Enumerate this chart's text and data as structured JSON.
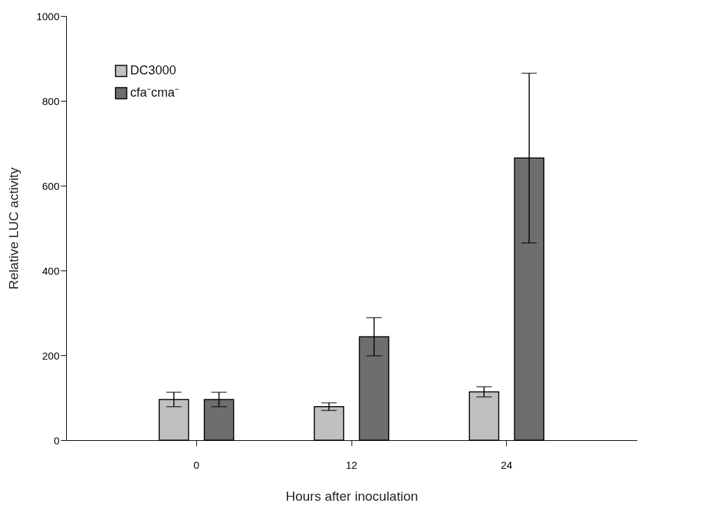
{
  "chart_data": {
    "type": "bar",
    "xlabel": "Hours after inoculation",
    "ylabel": "Relative LUC activity",
    "categories": [
      "0",
      "12",
      "24"
    ],
    "series": [
      {
        "name": "DC3000",
        "color": "#c0c0c0",
        "values": [
          96,
          79,
          114
        ],
        "errors": [
          17,
          9,
          12
        ]
      },
      {
        "name": "cfa⁻cma⁻",
        "color": "#6e6e6e",
        "values": [
          96,
          244,
          665
        ],
        "errors": [
          17,
          45,
          200
        ]
      }
    ],
    "ylim": [
      0,
      1000
    ],
    "yticks": [
      0,
      200,
      400,
      600,
      800,
      1000
    ],
    "grid": false,
    "legend": "top left"
  }
}
